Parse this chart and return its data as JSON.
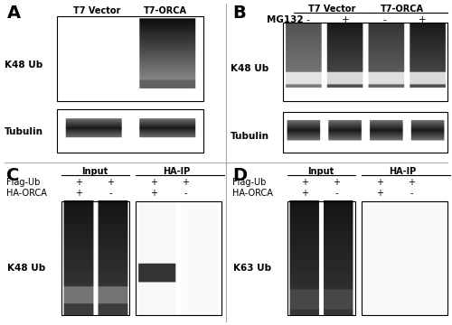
{
  "bg_color": "#ffffff",
  "panel_A": {
    "label": "A",
    "title_left": "T7 Vector",
    "title_right": "T7-ORCA",
    "blot1_label": "K48 Ub",
    "blot2_label": "Tubulin"
  },
  "panel_B": {
    "label": "B",
    "title_left": "T7 Vector",
    "title_right": "T7-ORCA",
    "mg132_label": "MG132",
    "mg132_vals": [
      "-",
      "+",
      "-",
      "+"
    ],
    "blot1_label": "K48 Ub",
    "blot2_label": "Tubulin"
  },
  "panel_C": {
    "label": "C",
    "input_label": "Input",
    "haip_label": "HA-IP",
    "flagub_vals": [
      "+",
      "+",
      "+",
      "+"
    ],
    "haorca_vals": [
      "+",
      "-",
      "+",
      "-"
    ],
    "blot_label": "K48 Ub"
  },
  "panel_D": {
    "label": "D",
    "input_label": "Input",
    "haip_label": "HA-IP",
    "flagub_vals": [
      "+",
      "+",
      "+",
      "+"
    ],
    "haorca_vals": [
      "+",
      "-",
      "+",
      "-"
    ],
    "blot_label": "K63 Ub"
  },
  "font_sizes": {
    "panel_letter": 14,
    "title": 8,
    "label": 7.5,
    "tick": 7
  }
}
